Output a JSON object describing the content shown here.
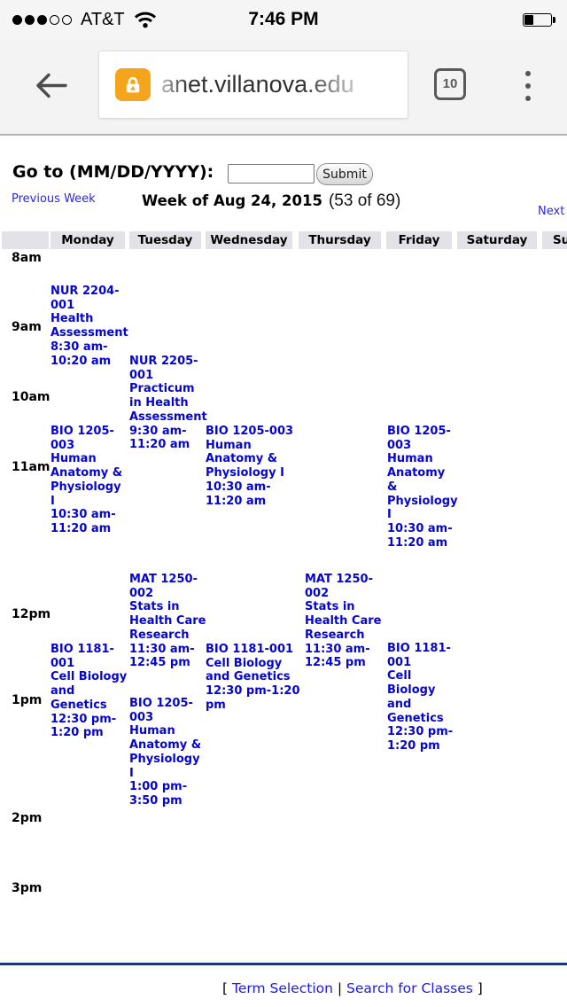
{
  "colors": {
    "class_link": "#0404d6",
    "nav_link": "#2626f0",
    "footer_link": "#1b1bef",
    "footer_rule": "#1c3c6e",
    "header_cell_bg": "#e2e2e8",
    "lock_badge": "#f6a41c"
  },
  "status_bar": {
    "carrier": "AT&T",
    "time": "7:46 PM",
    "signal_filled": 3,
    "signal_total": 5,
    "battery_percent": 35
  },
  "browser": {
    "url": "anet.villanova.edu",
    "tab_count": "10"
  },
  "page": {
    "goto_label": "Go to (MM/DD/YYYY):",
    "goto_input_value": "",
    "submit_label": "Submit",
    "week_nav": {
      "previous": "Previous Week",
      "title": "Week of Aug 24, 2015",
      "counter": "(53 of 69)",
      "next": "Next Week"
    },
    "footer": {
      "bracket_open": "[",
      "term_selection": "Term Selection",
      "divider": "|",
      "search_for_classes": "Search for Classes",
      "bracket_close": "]"
    }
  },
  "schedule": {
    "day_headers": [
      "",
      "Monday",
      "Tuesday",
      "Wednesday",
      "Thursday",
      "Friday",
      "Saturday",
      "Sunday"
    ],
    "time_labels": [
      "8am",
      "9am",
      "10am",
      "11am",
      "12pm",
      "1pm",
      "2pm",
      "3pm"
    ],
    "classes": [
      {
        "day": "Monday",
        "label": "NUR 2204-\n001\nHealth\nAssessment\n8:30 am-\n10:20 am"
      },
      {
        "day": "Tuesday",
        "label": "NUR 2205-\n001\nPracticum\nin Health\nAssessment\n9:30 am-\n11:20 am"
      },
      {
        "day": "Monday",
        "label": "BIO 1205-\n003\nHuman\nAnatomy &\nPhysiology\nI\n10:30 am-\n11:20 am"
      },
      {
        "day": "Wednesday",
        "label": "BIO 1205-003\nHuman\nAnatomy &\nPhysiology I\n10:30 am-\n11:20 am"
      },
      {
        "day": "Friday",
        "label": "BIO 1205-\n003\nHuman\nAnatomy\n&\nPhysiology\nI\n10:30 am-\n11:20 am"
      },
      {
        "day": "Tuesday",
        "label": "MAT 1250-\n002\nStats in\nHealth Care\nResearch\n11:30 am-\n12:45 pm"
      },
      {
        "day": "Thursday",
        "label": "MAT 1250-\n002\nStats in\nHealth Care\nResearch\n11:30 am-\n12:45 pm"
      },
      {
        "day": "Monday",
        "label": "BIO 1181-\n001\nCell Biology\nand\nGenetics\n12:30 pm-\n1:20 pm"
      },
      {
        "day": "Wednesday",
        "label": "BIO 1181-001\nCell Biology\nand Genetics\n12:30 pm-1:20\npm"
      },
      {
        "day": "Friday",
        "label": "BIO 1181-\n001\nCell\nBiology\nand\nGenetics\n12:30 pm-\n1:20 pm"
      },
      {
        "day": "Tuesday",
        "label": "BIO 1205-\n003\nHuman\nAnatomy &\nPhysiology\nI\n1:00 pm-\n3:50 pm"
      }
    ]
  }
}
